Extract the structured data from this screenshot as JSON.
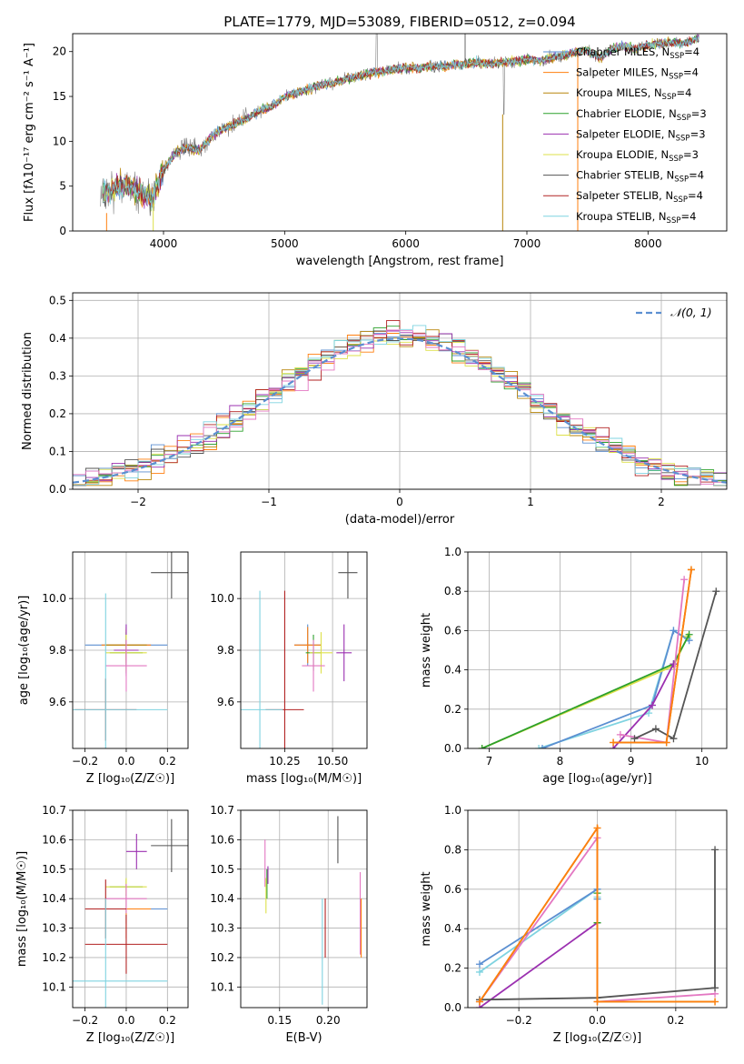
{
  "figure_title": "PLATE=1779, MJD=53089, FIBERID=0512, z=0.094",
  "colors": {
    "chabrier_miles": "#5b8fd1",
    "salpeter_miles": "#ff7f0e",
    "kroupa_miles": "#b8860b",
    "chabrier_elodie": "#2ca02c",
    "salpeter_elodie": "#9b30b0",
    "kroupa_elodie": "#dde04a",
    "chabrier_stelib": "#555555",
    "salpeter_stelib": "#b22222",
    "kroupa_stelib": "#7fd3e0",
    "pink": "#e377c2",
    "gaussian": "#5b8fd1",
    "data": "#808080"
  },
  "chart_data": [
    {
      "id": "spectrum",
      "type": "line",
      "xlabel": "wavelength [Angstrom, rest frame]",
      "ylabel": "Flux [fλ10⁻¹⁷ erg cm⁻² s⁻¹ A⁻¹]",
      "xlim": [
        3250,
        8650
      ],
      "ylim": [
        0,
        22
      ],
      "xticks": [
        4000,
        5000,
        6000,
        7000,
        8000
      ],
      "yticks": [
        0,
        5,
        10,
        15,
        20
      ],
      "grid": false,
      "legend_position": "right",
      "spectrum_anchor": {
        "x": [
          3500,
          3600,
          3700,
          3800,
          3900,
          4000,
          4100,
          4200,
          4300,
          4400,
          4500,
          4600,
          4700,
          4800,
          4900,
          5000,
          5100,
          5200,
          5300,
          5400,
          5500,
          5600,
          5700,
          5800,
          5900,
          6000,
          6100,
          6200,
          6300,
          6400,
          6500,
          6600,
          6700,
          6800,
          6900,
          7000,
          7100,
          7200,
          7300,
          7400,
          7500,
          7600,
          7700,
          7800,
          7900,
          8000,
          8100,
          8200,
          8300,
          8400
        ],
        "y": [
          4.2,
          4.8,
          5.2,
          4.3,
          3.5,
          6.8,
          8.8,
          9.3,
          9.0,
          10.6,
          11.5,
          12.0,
          12.6,
          13.5,
          13.9,
          15.0,
          15.4,
          15.8,
          16.3,
          16.5,
          16.9,
          17.2,
          17.5,
          17.8,
          18.0,
          18.2,
          18.1,
          18.4,
          18.3,
          18.5,
          18.6,
          18.8,
          18.6,
          18.8,
          18.9,
          19.2,
          18.9,
          19.3,
          19.5,
          19.9,
          20.1,
          19.3,
          20.3,
          20.6,
          20.3,
          20.7,
          20.9,
          21.0,
          20.9,
          21.4
        ]
      },
      "legend": [
        {
          "label": "Chabrier MILES, N",
          "sub": "SSP",
          "suffix": "=4",
          "color": "#5b8fd1"
        },
        {
          "label": "Salpeter MILES, N",
          "sub": "SSP",
          "suffix": "=4",
          "color": "#ff7f0e"
        },
        {
          "label": "Kroupa MILES, N",
          "sub": "SSP",
          "suffix": "=4",
          "color": "#b8860b"
        },
        {
          "label": "Chabrier ELODIE, N",
          "sub": "SSP",
          "suffix": "=3",
          "color": "#2ca02c"
        },
        {
          "label": "Salpeter ELODIE, N",
          "sub": "SSP",
          "suffix": "=3",
          "color": "#9b30b0"
        },
        {
          "label": "Kroupa ELODIE, N",
          "sub": "SSP",
          "suffix": "=3",
          "color": "#dde04a"
        },
        {
          "label": "Chabrier STELIB, N",
          "sub": "SSP",
          "suffix": "=4",
          "color": "#555555"
        },
        {
          "label": "Salpeter STELIB, N",
          "sub": "SSP",
          "suffix": "=4",
          "color": "#b22222"
        },
        {
          "label": "Kroupa STELIB, N",
          "sub": "SSP",
          "suffix": "=4",
          "color": "#7fd3e0"
        }
      ]
    },
    {
      "id": "residuals",
      "type": "line",
      "xlabel": "(data-model)/error",
      "ylabel": "Normed distribution",
      "xlim": [
        -2.5,
        2.5
      ],
      "ylim": [
        0,
        0.52
      ],
      "xticks": [
        -2,
        -1,
        0,
        1,
        2
      ],
      "yticks": [
        0.0,
        0.1,
        0.2,
        0.3,
        0.4,
        0.5
      ],
      "grid": true,
      "legend": [
        {
          "label": "𝒩(0, 1)",
          "style": "dashed",
          "color": "#5b8fd1"
        }
      ],
      "legend_position": "top-right",
      "bin_width": 0.1
    },
    {
      "id": "age_vs_Z",
      "type": "scatter",
      "xlabel": "Z [log₁₀(Z/Z☉)]",
      "ylabel": "age  [log₁₀(age/yr)]",
      "xlim": [
        -0.26,
        0.3
      ],
      "ylim": [
        9.42,
        10.18
      ],
      "xticks": [
        -0.2,
        0.0,
        0.2
      ],
      "yticks": [
        9.6,
        9.8,
        10.0
      ],
      "grid": true,
      "points": [
        {
          "x": 0.0,
          "y": 9.82,
          "xerr": 0.2,
          "yerr": 0.08,
          "color": "#5b8fd1"
        },
        {
          "x": 0.0,
          "y": 9.82,
          "xerr": 0.12,
          "yerr": 0.07,
          "color": "#ff7f0e"
        },
        {
          "x": 0.0,
          "y": 9.82,
          "xerr": 0.1,
          "yerr": 0.06,
          "color": "#b8860b"
        },
        {
          "x": 0.0,
          "y": 9.79,
          "xerr": 0.08,
          "yerr": 0.08,
          "color": "#2ca02c"
        },
        {
          "x": 0.0,
          "y": 9.8,
          "xerr": 0.06,
          "yerr": 0.1,
          "color": "#9b30b0"
        },
        {
          "x": 0.0,
          "y": 9.79,
          "xerr": 0.1,
          "yerr": 0.07,
          "color": "#dde04a"
        },
        {
          "x": 0.0,
          "y": 9.74,
          "xerr": 0.1,
          "yerr": 0.1,
          "color": "#e377c2"
        },
        {
          "x": -0.1,
          "y": 9.57,
          "xerr": 0.15,
          "yerr": 0.12,
          "color": "#b22222"
        },
        {
          "x": -0.1,
          "y": 9.57,
          "xerr": 0.3,
          "yerr": 0.45,
          "color": "#7fd3e0"
        },
        {
          "x": 0.22,
          "y": 10.1,
          "xerr": 0.1,
          "yerr": 0.1,
          "color": "#555555"
        }
      ]
    },
    {
      "id": "age_vs_mass",
      "type": "scatter",
      "xlabel": "mass [log₁₀(M/M☉)]",
      "ylabel": "",
      "xlim": [
        10.02,
        10.68
      ],
      "ylim": [
        9.42,
        10.18
      ],
      "xticks": [
        10.25,
        10.5
      ],
      "xticklabels": [
        "10.25",
        "10.50"
      ],
      "yticks": [
        9.6,
        9.8,
        10.0
      ],
      "grid": true,
      "points": [
        {
          "x": 10.37,
          "y": 9.82,
          "xerr": 0.07,
          "yerr": 0.08,
          "color": "#5b8fd1"
        },
        {
          "x": 10.37,
          "y": 9.82,
          "xerr": 0.07,
          "yerr": 0.07,
          "color": "#ff7f0e"
        },
        {
          "x": 10.4,
          "y": 9.79,
          "xerr": 0.04,
          "yerr": 0.07,
          "color": "#2ca02c"
        },
        {
          "x": 10.56,
          "y": 9.79,
          "xerr": 0.04,
          "yerr": 0.11,
          "color": "#9b30b0"
        },
        {
          "x": 10.44,
          "y": 9.79,
          "xerr": 0.06,
          "yerr": 0.08,
          "color": "#dde04a"
        },
        {
          "x": 10.4,
          "y": 9.74,
          "xerr": 0.06,
          "yerr": 0.1,
          "color": "#e377c2"
        },
        {
          "x": 10.25,
          "y": 9.57,
          "xerr": 0.1,
          "yerr": 0.46,
          "color": "#b22222"
        },
        {
          "x": 10.12,
          "y": 9.57,
          "xerr": 0.12,
          "yerr": 0.46,
          "color": "#7fd3e0"
        },
        {
          "x": 10.58,
          "y": 10.1,
          "xerr": 0.05,
          "yerr": 0.1,
          "color": "#555555"
        }
      ]
    },
    {
      "id": "mass_weight_vs_age",
      "type": "line",
      "xlabel": "age  [log₁₀(age/yr)]",
      "ylabel": "mass weight",
      "xlim": [
        6.7,
        10.35
      ],
      "ylim": [
        0,
        1.0
      ],
      "xticks": [
        7,
        8,
        9,
        10
      ],
      "yticks": [
        0.0,
        0.2,
        0.4,
        0.6,
        0.8,
        1.0
      ],
      "grid": true,
      "series": [
        {
          "color": "#7fd3e0",
          "x": [
            7.7,
            9.25,
            9.6,
            9.8
          ],
          "y": [
            0.0,
            0.18,
            0.6,
            0.56
          ]
        },
        {
          "color": "#5b8fd1",
          "x": [
            7.75,
            9.3,
            9.6,
            9.82
          ],
          "y": [
            0.0,
            0.22,
            0.6,
            0.55
          ]
        },
        {
          "color": "#dde04a",
          "x": [
            6.9,
            9.6,
            9.8
          ],
          "y": [
            0.0,
            0.42,
            0.57
          ]
        },
        {
          "color": "#2ca02c",
          "x": [
            6.9,
            9.6,
            9.82
          ],
          "y": [
            0.0,
            0.43,
            0.58
          ]
        },
        {
          "color": "#9b30b0",
          "x": [
            8.75,
            9.3,
            9.6
          ],
          "y": [
            0.0,
            0.22,
            0.43
          ]
        },
        {
          "color": "#e377c2",
          "x": [
            8.85,
            9.5,
            9.75
          ],
          "y": [
            0.07,
            0.03,
            0.86
          ]
        },
        {
          "color": "#555555",
          "x": [
            9.05,
            9.35,
            9.6,
            10.2
          ],
          "y": [
            0.05,
            0.1,
            0.05,
            0.8
          ]
        },
        {
          "color": "#b8860b",
          "x": [
            8.75,
            9.5,
            9.85
          ],
          "y": [
            0.03,
            0.03,
            0.91
          ]
        },
        {
          "color": "#ff7f0e",
          "x": [
            8.75,
            9.5,
            9.85
          ],
          "y": [
            0.03,
            0.03,
            0.91
          ]
        }
      ]
    },
    {
      "id": "mass_vs_Z",
      "type": "scatter",
      "xlabel": "Z [log₁₀(Z/Z☉)]",
      "ylabel": "mass [log₁₀(M/M☉)]",
      "xlim": [
        -0.26,
        0.3
      ],
      "ylim": [
        10.03,
        10.7
      ],
      "xticks": [
        -0.2,
        0.0,
        0.2
      ],
      "yticks": [
        10.1,
        10.2,
        10.3,
        10.4,
        10.5,
        10.6,
        10.7
      ],
      "grid": true,
      "points": [
        {
          "x": 0.0,
          "y": 10.365,
          "xerr": 0.2,
          "yerr": 0.05,
          "color": "#5b8fd1"
        },
        {
          "x": 0.0,
          "y": 10.365,
          "xerr": 0.12,
          "yerr": 0.1,
          "color": "#ff7f0e"
        },
        {
          "x": 0.0,
          "y": 10.44,
          "xerr": 0.08,
          "yerr": 0.03,
          "color": "#2ca02c"
        },
        {
          "x": 0.0,
          "y": 10.44,
          "xerr": 0.1,
          "yerr": 0.03,
          "color": "#dde04a"
        },
        {
          "x": 0.05,
          "y": 10.56,
          "xerr": 0.05,
          "yerr": 0.06,
          "color": "#9b30b0"
        },
        {
          "x": 0.0,
          "y": 10.4,
          "xerr": 0.1,
          "yerr": 0.05,
          "color": "#e377c2"
        },
        {
          "x": -0.1,
          "y": 10.365,
          "xerr": 0.1,
          "yerr": 0.1,
          "color": "#b22222"
        },
        {
          "x": 0.0,
          "y": 10.245,
          "xerr": 0.2,
          "yerr": 0.1,
          "color": "#b22222"
        },
        {
          "x": -0.1,
          "y": 10.12,
          "xerr": 0.3,
          "yerr": 0.28,
          "color": "#7fd3e0"
        },
        {
          "x": 0.22,
          "y": 10.58,
          "xerr": 0.1,
          "yerr": 0.09,
          "color": "#555555"
        }
      ]
    },
    {
      "id": "mass_vs_ebv",
      "type": "scatter",
      "xlabel": "E(B-V)",
      "ylabel": "",
      "xlim": [
        0.11,
        0.24
      ],
      "ylim": [
        10.03,
        10.7
      ],
      "xticks": [
        0.15,
        0.2
      ],
      "xticklabels": [
        "0.15",
        "0.20"
      ],
      "yticks": [
        10.1,
        10.2,
        10.3,
        10.4,
        10.5,
        10.6,
        10.7
      ],
      "grid": true,
      "points": [
        {
          "x": 0.135,
          "y": 10.52,
          "xerr": 0,
          "yerr": 0.08,
          "color": "#e377c2"
        },
        {
          "x": 0.137,
          "y": 10.45,
          "xerr": 0,
          "yerr": 0.05,
          "color": "#2ca02c"
        },
        {
          "x": 0.136,
          "y": 10.41,
          "xerr": 0,
          "yerr": 0.06,
          "color": "#dde04a"
        },
        {
          "x": 0.138,
          "y": 10.48,
          "xerr": 0,
          "yerr": 0.03,
          "color": "#9b30b0"
        },
        {
          "x": 0.197,
          "y": 10.3,
          "xerr": 0,
          "yerr": 0.1,
          "color": "#b22222"
        },
        {
          "x": 0.194,
          "y": 10.22,
          "xerr": 0,
          "yerr": 0.18,
          "color": "#7fd3e0"
        },
        {
          "x": 0.21,
          "y": 10.6,
          "xerr": 0,
          "yerr": 0.08,
          "color": "#555555"
        },
        {
          "x": 0.233,
          "y": 10.35,
          "xerr": 0,
          "yerr": 0.14,
          "color": "#e377c2"
        },
        {
          "x": 0.234,
          "y": 10.3,
          "xerr": 0,
          "yerr": 0.1,
          "color": "#ff7f0e"
        }
      ]
    },
    {
      "id": "mass_weight_vs_Z",
      "type": "line",
      "xlabel": "Z [log₁₀(Z/Z☉)]",
      "ylabel": "mass weight",
      "xlim": [
        -0.33,
        0.33
      ],
      "ylim": [
        0,
        1.0
      ],
      "xticks": [
        -0.2,
        0.0,
        0.2
      ],
      "yticks": [
        0.0,
        0.2,
        0.4,
        0.6,
        0.8,
        1.0
      ],
      "grid": true,
      "series": [
        {
          "color": "#7fd3e0",
          "x": [
            -0.3,
            0.0,
            0.0
          ],
          "y": [
            0.18,
            0.6,
            0.56
          ]
        },
        {
          "color": "#5b8fd1",
          "x": [
            -0.3,
            0.0,
            0.0
          ],
          "y": [
            0.22,
            0.6,
            0.55
          ]
        },
        {
          "color": "#9b30b0",
          "x": [
            -0.3,
            0.0,
            0.0
          ],
          "y": [
            0.0,
            0.43,
            0.43
          ]
        },
        {
          "color": "#2ca02c",
          "x": [
            0.0,
            0.0
          ],
          "y": [
            0.43,
            0.58
          ]
        },
        {
          "color": "#e377c2",
          "x": [
            -0.3,
            0.0,
            0.0,
            0.3
          ],
          "y": [
            0.03,
            0.86,
            0.03,
            0.07
          ]
        },
        {
          "color": "#555555",
          "x": [
            -0.3,
            0.0,
            0.3,
            0.3
          ],
          "y": [
            0.04,
            0.05,
            0.1,
            0.8
          ]
        },
        {
          "color": "#b8860b",
          "x": [
            -0.3,
            0.0,
            0.0,
            0.3
          ],
          "y": [
            0.03,
            0.91,
            0.03,
            0.03
          ]
        },
        {
          "color": "#ff7f0e",
          "x": [
            -0.3,
            0.0,
            0.0,
            0.3
          ],
          "y": [
            0.03,
            0.91,
            0.03,
            0.03
          ]
        }
      ]
    }
  ]
}
